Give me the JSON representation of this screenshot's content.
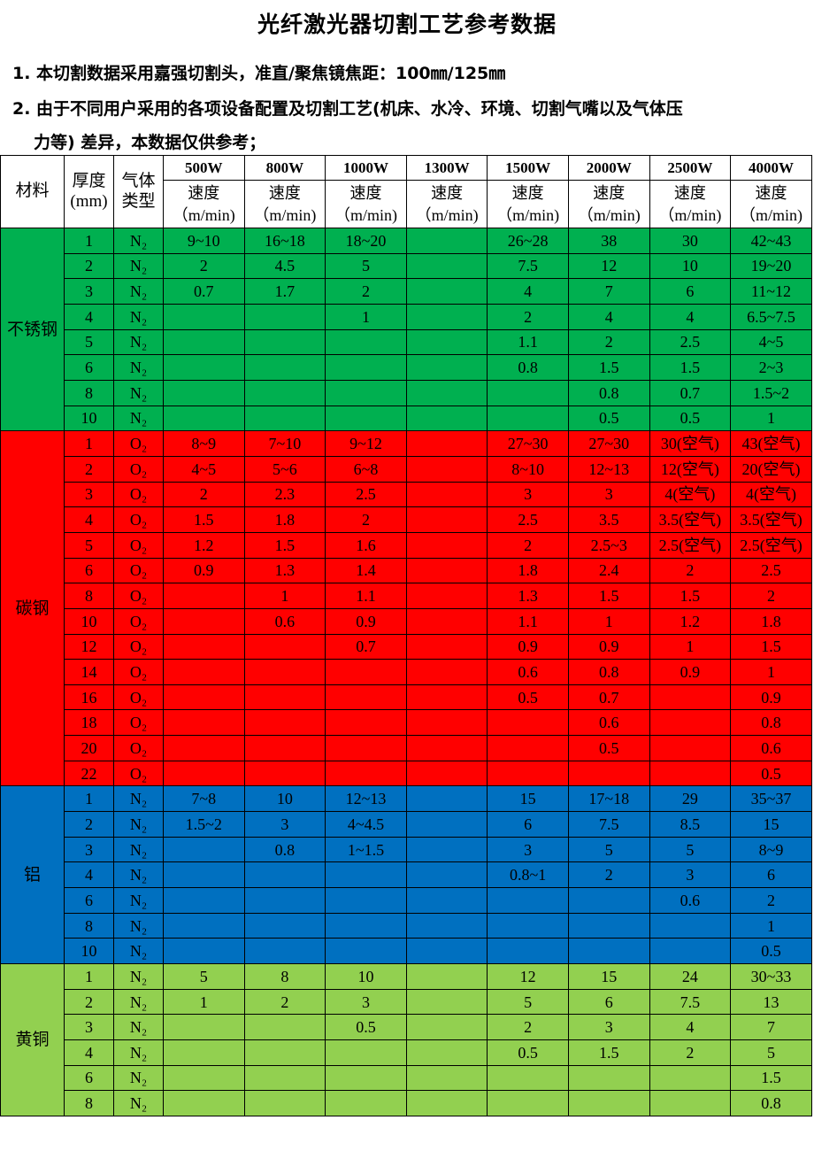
{
  "title": "光纤激光器切割工艺参考数据",
  "notes": [
    "1. 本切割数据采用嘉强切割头，准直/聚焦镜焦距：100㎜/125㎜",
    "2. 由于不同用户采用的各项设备配置及切割工艺(机床、水冷、环境、切割气嘴以及气体压",
    "力等) 差异，本数据仅供参考；"
  ],
  "header": {
    "material": "材料",
    "thickness": "厚度\n(mm)",
    "gas": "气体\n类型",
    "powers": [
      "500W",
      "800W",
      "1000W",
      "1300W",
      "1500W",
      "2000W",
      "2500W",
      "4000W"
    ],
    "speed": "速度\n（m/min)"
  },
  "groups": [
    {
      "material": "不锈钢",
      "color": "#00B050",
      "gas": "N₂",
      "rows": [
        {
          "t": "1",
          "v": [
            "9~10",
            "16~18",
            "18~20",
            "",
            "26~28",
            "38",
            "30",
            "42~43"
          ]
        },
        {
          "t": "2",
          "v": [
            "2",
            "4.5",
            "5",
            "",
            "7.5",
            "12",
            "10",
            "19~20"
          ]
        },
        {
          "t": "3",
          "v": [
            "0.7",
            "1.7",
            "2",
            "",
            "4",
            "7",
            "6",
            "11~12"
          ]
        },
        {
          "t": "4",
          "v": [
            "",
            "",
            "1",
            "",
            "2",
            "4",
            "4",
            "6.5~7.5"
          ]
        },
        {
          "t": "5",
          "v": [
            "",
            "",
            "",
            "",
            "1.1",
            "2",
            "2.5",
            "4~5"
          ]
        },
        {
          "t": "6",
          "v": [
            "",
            "",
            "",
            "",
            "0.8",
            "1.5",
            "1.5",
            "2~3"
          ]
        },
        {
          "t": "8",
          "v": [
            "",
            "",
            "",
            "",
            "",
            "0.8",
            "0.7",
            "1.5~2"
          ]
        },
        {
          "t": "10",
          "v": [
            "",
            "",
            "",
            "",
            "",
            "0.5",
            "0.5",
            "1"
          ]
        }
      ]
    },
    {
      "material": "碳钢",
      "color": "#FF0000",
      "gas": "O₂",
      "rows": [
        {
          "t": "1",
          "v": [
            "8~9",
            "7~10",
            "9~12",
            "",
            "27~30",
            "27~30",
            "30(空气)",
            "43(空气)"
          ]
        },
        {
          "t": "2",
          "v": [
            "4~5",
            "5~6",
            "6~8",
            "",
            "8~10",
            "12~13",
            "12(空气)",
            "20(空气)"
          ]
        },
        {
          "t": "3",
          "v": [
            "2",
            "2.3",
            "2.5",
            "",
            "3",
            "3",
            "4(空气)",
            "4(空气)"
          ]
        },
        {
          "t": "4",
          "v": [
            "1.5",
            "1.8",
            "2",
            "",
            "2.5",
            "3.5",
            "3.5(空气)",
            "3.5(空气)"
          ]
        },
        {
          "t": "5",
          "v": [
            "1.2",
            "1.5",
            "1.6",
            "",
            "2",
            "2.5~3",
            "2.5(空气)",
            "2.5(空气)"
          ]
        },
        {
          "t": "6",
          "v": [
            "0.9",
            "1.3",
            "1.4",
            "",
            "1.8",
            "2.4",
            "2",
            "2.5"
          ]
        },
        {
          "t": "8",
          "v": [
            "",
            "1",
            "1.1",
            "",
            "1.3",
            "1.5",
            "1.5",
            "2"
          ]
        },
        {
          "t": "10",
          "v": [
            "",
            "0.6",
            "0.9",
            "",
            "1.1",
            "1",
            "1.2",
            "1.8"
          ]
        },
        {
          "t": "12",
          "v": [
            "",
            "",
            "0.7",
            "",
            "0.9",
            "0.9",
            "1",
            "1.5"
          ]
        },
        {
          "t": "14",
          "v": [
            "",
            "",
            "",
            "",
            "0.6",
            "0.8",
            "0.9",
            "1"
          ]
        },
        {
          "t": "16",
          "v": [
            "",
            "",
            "",
            "",
            "0.5",
            "0.7",
            "",
            "0.9"
          ]
        },
        {
          "t": "18",
          "v": [
            "",
            "",
            "",
            "",
            "",
            "0.6",
            "",
            "0.8"
          ]
        },
        {
          "t": "20",
          "v": [
            "",
            "",
            "",
            "",
            "",
            "0.5",
            "",
            "0.6"
          ]
        },
        {
          "t": "22",
          "v": [
            "",
            "",
            "",
            "",
            "",
            "",
            "",
            "0.5"
          ]
        }
      ]
    },
    {
      "material": "铝",
      "color": "#0070C0",
      "gas": "N₂",
      "rows": [
        {
          "t": "1",
          "v": [
            "7~8",
            "10",
            "12~13",
            "",
            "15",
            "17~18",
            "29",
            "35~37"
          ]
        },
        {
          "t": "2",
          "v": [
            "1.5~2",
            "3",
            "4~4.5",
            "",
            "6",
            "7.5",
            "8.5",
            "15"
          ]
        },
        {
          "t": "3",
          "v": [
            "",
            "0.8",
            "1~1.5",
            "",
            "3",
            "5",
            "5",
            "8~9"
          ]
        },
        {
          "t": "4",
          "v": [
            "",
            "",
            "",
            "",
            "0.8~1",
            "2",
            "3",
            "6"
          ]
        },
        {
          "t": "6",
          "v": [
            "",
            "",
            "",
            "",
            "",
            "",
            "0.6",
            "2"
          ]
        },
        {
          "t": "8",
          "v": [
            "",
            "",
            "",
            "",
            "",
            "",
            "",
            "1"
          ]
        },
        {
          "t": "10",
          "v": [
            "",
            "",
            "",
            "",
            "",
            "",
            "",
            "0.5"
          ]
        }
      ]
    },
    {
      "material": "黄铜",
      "color": "#92D050",
      "gas": "N₂",
      "rows": [
        {
          "t": "1",
          "v": [
            "5",
            "8",
            "10",
            "",
            "12",
            "15",
            "24",
            "30~33"
          ]
        },
        {
          "t": "2",
          "v": [
            "1",
            "2",
            "3",
            "",
            "5",
            "6",
            "7.5",
            "13"
          ]
        },
        {
          "t": "3",
          "v": [
            "",
            "",
            "0.5",
            "",
            "2",
            "3",
            "4",
            "7"
          ]
        },
        {
          "t": "4",
          "v": [
            "",
            "",
            "",
            "",
            "0.5",
            "1.5",
            "2",
            "5"
          ]
        },
        {
          "t": "6",
          "v": [
            "",
            "",
            "",
            "",
            "",
            "",
            "",
            "1.5"
          ]
        },
        {
          "t": "8",
          "v": [
            "",
            "",
            "",
            "",
            "",
            "",
            "",
            "0.8"
          ]
        }
      ]
    }
  ]
}
